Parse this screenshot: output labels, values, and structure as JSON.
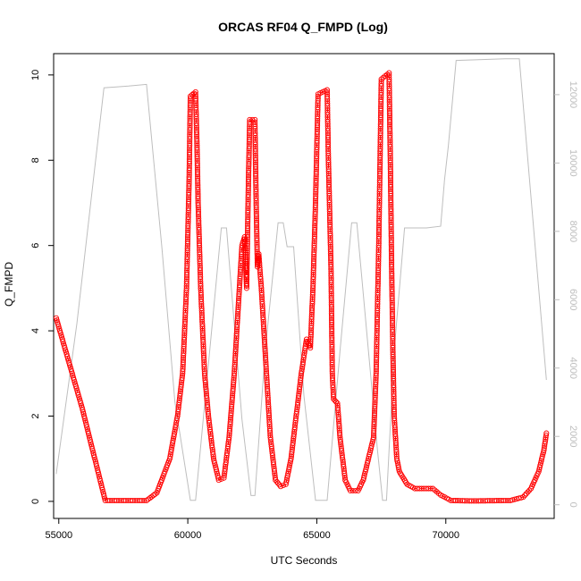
{
  "chart_data": {
    "type": "scatter",
    "title": "ORCAS RF04 Q_FMPD (Log)",
    "xlabel": "UTC Seconds",
    "ylabel": "Q_FMPD",
    "xlim": [
      54800,
      74200
    ],
    "ylim": [
      -0.4,
      10.5
    ],
    "x_ticks": [
      55000,
      60000,
      65000,
      70000
    ],
    "y_ticks": [
      0,
      2,
      4,
      6,
      8,
      10
    ],
    "y2lim": [
      -400,
      13200
    ],
    "y2_ticks": [
      0,
      2000,
      4000,
      6000,
      8000,
      10000,
      12000
    ],
    "ylabel2": "",
    "grid": false,
    "legend": "none",
    "series": [
      {
        "style": "points-and-dashed-line",
        "color": "#ff0000",
        "axis": "left",
        "points": [
          [
            54900,
            4.3
          ],
          [
            55900,
            2.2
          ],
          [
            56800,
            0.02
          ],
          [
            58400,
            0.02
          ],
          [
            58800,
            0.2
          ],
          [
            59300,
            1.0
          ],
          [
            59600,
            2.0
          ],
          [
            59800,
            3.0
          ],
          [
            59950,
            5.0
          ],
          [
            60050,
            7.5
          ],
          [
            60100,
            9.5
          ],
          [
            60300,
            9.6
          ],
          [
            60350,
            8.5
          ],
          [
            60400,
            7.0
          ],
          [
            60500,
            5.0
          ],
          [
            60650,
            3.0
          ],
          [
            60800,
            2.0
          ],
          [
            61000,
            1.0
          ],
          [
            61200,
            0.5
          ],
          [
            61400,
            0.55
          ],
          [
            61600,
            1.5
          ],
          [
            61800,
            3.0
          ],
          [
            61950,
            4.5
          ],
          [
            62100,
            6.0
          ],
          [
            62200,
            6.2
          ],
          [
            62280,
            5.0
          ],
          [
            62350,
            7.5
          ],
          [
            62400,
            8.95
          ],
          [
            62600,
            8.95
          ],
          [
            62650,
            7.0
          ],
          [
            62700,
            5.5
          ],
          [
            62750,
            5.8
          ],
          [
            62850,
            5.0
          ],
          [
            62950,
            4.0
          ],
          [
            63050,
            3.0
          ],
          [
            63200,
            1.5
          ],
          [
            63400,
            0.5
          ],
          [
            63600,
            0.35
          ],
          [
            63800,
            0.4
          ],
          [
            64000,
            1.0
          ],
          [
            64200,
            2.0
          ],
          [
            64400,
            3.0
          ],
          [
            64600,
            3.8
          ],
          [
            64750,
            3.6
          ],
          [
            64850,
            5.0
          ],
          [
            64950,
            7.0
          ],
          [
            65050,
            9.55
          ],
          [
            65400,
            9.65
          ],
          [
            65450,
            8.0
          ],
          [
            65550,
            5.5
          ],
          [
            65600,
            3.0
          ],
          [
            65650,
            2.4
          ],
          [
            65800,
            2.3
          ],
          [
            65900,
            1.5
          ],
          [
            66100,
            0.5
          ],
          [
            66300,
            0.25
          ],
          [
            66600,
            0.25
          ],
          [
            66800,
            0.5
          ],
          [
            67000,
            1.0
          ],
          [
            67200,
            1.5
          ],
          [
            67300,
            3.0
          ],
          [
            67400,
            6.0
          ],
          [
            67500,
            9.9
          ],
          [
            67800,
            10.05
          ],
          [
            67850,
            8.0
          ],
          [
            67900,
            5.5
          ],
          [
            67950,
            3.5
          ],
          [
            68000,
            2.0
          ],
          [
            68100,
            1.0
          ],
          [
            68200,
            0.7
          ],
          [
            68500,
            0.4
          ],
          [
            68800,
            0.3
          ],
          [
            69500,
            0.3
          ],
          [
            69800,
            0.15
          ],
          [
            70200,
            0.02
          ],
          [
            71000,
            0.01
          ],
          [
            72500,
            0.02
          ],
          [
            73000,
            0.1
          ],
          [
            73300,
            0.3
          ],
          [
            73600,
            0.7
          ],
          [
            73800,
            1.2
          ],
          [
            73900,
            1.6
          ]
        ]
      },
      {
        "style": "line",
        "color": "#bebebe",
        "axis": "right",
        "points": [
          [
            54900,
            900
          ],
          [
            55700,
            5300
          ],
          [
            56750,
            12200
          ],
          [
            57700,
            12250
          ],
          [
            58400,
            12300
          ],
          [
            59000,
            7500
          ],
          [
            59500,
            3000
          ],
          [
            60100,
            130
          ],
          [
            60300,
            130
          ],
          [
            60850,
            4500
          ],
          [
            61300,
            8100
          ],
          [
            61500,
            8100
          ],
          [
            62100,
            2500
          ],
          [
            62450,
            270
          ],
          [
            62600,
            270
          ],
          [
            63000,
            4500
          ],
          [
            63500,
            8250
          ],
          [
            63700,
            8250
          ],
          [
            63850,
            7550
          ],
          [
            64100,
            7550
          ],
          [
            64500,
            3200
          ],
          [
            64950,
            130
          ],
          [
            65400,
            130
          ],
          [
            65900,
            4500
          ],
          [
            66350,
            8250
          ],
          [
            66550,
            8250
          ],
          [
            67000,
            4500
          ],
          [
            67350,
            1600
          ],
          [
            67550,
            130
          ],
          [
            67700,
            130
          ],
          [
            68000,
            4500
          ],
          [
            68400,
            8100
          ],
          [
            69250,
            8100
          ],
          [
            69800,
            8150
          ],
          [
            69950,
            9500
          ],
          [
            70100,
            10500
          ],
          [
            70400,
            13000
          ],
          [
            72300,
            13050
          ],
          [
            72850,
            13050
          ],
          [
            73900,
            3650
          ]
        ]
      }
    ]
  }
}
